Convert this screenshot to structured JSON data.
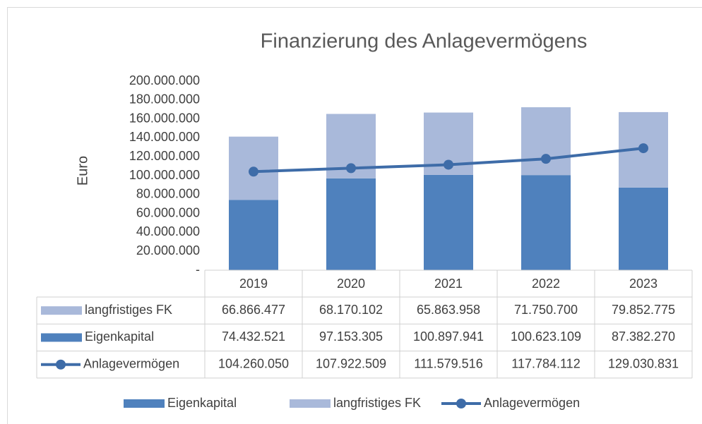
{
  "chart_data": {
    "type": "bar",
    "title": "Finanzierung des Anlagevermögens",
    "y_axis_label": "Euro",
    "categories": [
      "2019",
      "2020",
      "2021",
      "2022",
      "2023"
    ],
    "series": [
      {
        "name": "Eigenkapital",
        "type": "bar",
        "color": "#4f81bd",
        "values": [
          74432521,
          97153305,
          100897941,
          100623109,
          87382270
        ],
        "value_labels": [
          "74.432.521",
          "97.153.305",
          "100.897.941",
          "100.623.109",
          "87.382.270"
        ]
      },
      {
        "name": "langfristiges FK",
        "type": "bar",
        "color": "#a9b9da",
        "values": [
          66866477,
          68170102,
          65863958,
          71750700,
          79852775
        ],
        "value_labels": [
          "66.866.477",
          "68.170.102",
          "65.863.958",
          "71.750.700",
          "79.852.775"
        ]
      },
      {
        "name": "Anlagevermögen",
        "type": "line",
        "color": "#3e6ca8",
        "values": [
          104260050,
          107922509,
          111579516,
          117784112,
          129030831
        ],
        "value_labels": [
          "104.260.050",
          "107.922.509",
          "111.579.516",
          "117.784.112",
          "129.030.831"
        ]
      }
    ],
    "stacked": true,
    "ylim": [
      0,
      200000000
    ],
    "yticks": [
      {
        "value": 0,
        "label": "-"
      },
      {
        "value": 20000000,
        "label": "20.000.000"
      },
      {
        "value": 40000000,
        "label": "40.000.000"
      },
      {
        "value": 60000000,
        "label": "60.000.000"
      },
      {
        "value": 80000000,
        "label": "80.000.000"
      },
      {
        "value": 100000000,
        "label": "100.000.000"
      },
      {
        "value": 120000000,
        "label": "120.000.000"
      },
      {
        "value": 140000000,
        "label": "140.000.000"
      },
      {
        "value": 160000000,
        "label": "160.000.000"
      },
      {
        "value": 180000000,
        "label": "180.000.000"
      },
      {
        "value": 200000000,
        "label": "200.000.000"
      }
    ],
    "legend": "bottom"
  }
}
